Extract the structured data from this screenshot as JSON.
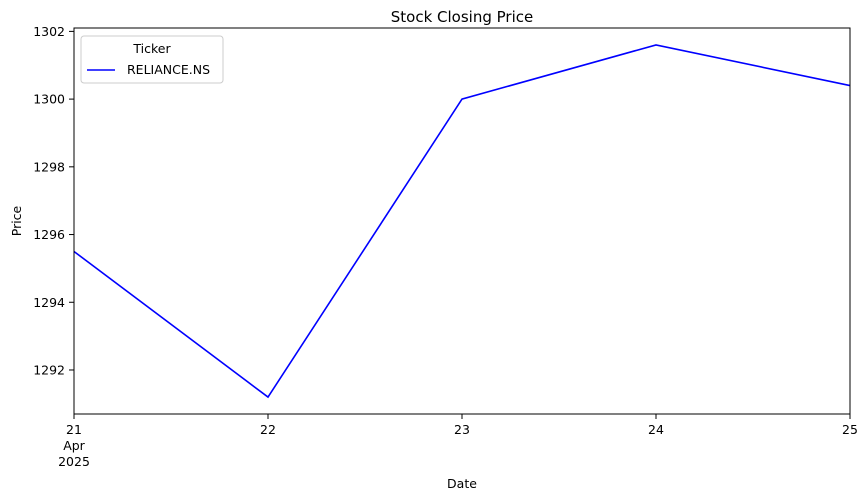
{
  "chart_data": {
    "type": "line",
    "title": "Stock Closing Price",
    "xlabel": "Date",
    "ylabel": "Price",
    "x": [
      "2025-04-21",
      "2025-04-22",
      "2025-04-23",
      "2025-04-24",
      "2025-04-25"
    ],
    "x_tick_labels": [
      {
        "day": "21",
        "month": "Apr",
        "year": "2025"
      },
      {
        "day": "22",
        "month": "",
        "year": ""
      },
      {
        "day": "23",
        "month": "",
        "year": ""
      },
      {
        "day": "24",
        "month": "",
        "year": ""
      },
      {
        "day": "25",
        "month": "",
        "year": ""
      }
    ],
    "y_ticks": [
      1292,
      1294,
      1296,
      1298,
      1300,
      1302
    ],
    "ylim": [
      1290.7,
      1302.1
    ],
    "grid": false,
    "legend": {
      "title": "Ticker",
      "placement": "top-left"
    },
    "series": [
      {
        "name": "RELIANCE.NS",
        "color": "#0000ff",
        "values": [
          1295.5,
          1291.2,
          1300.0,
          1301.6,
          1300.4
        ]
      }
    ]
  }
}
